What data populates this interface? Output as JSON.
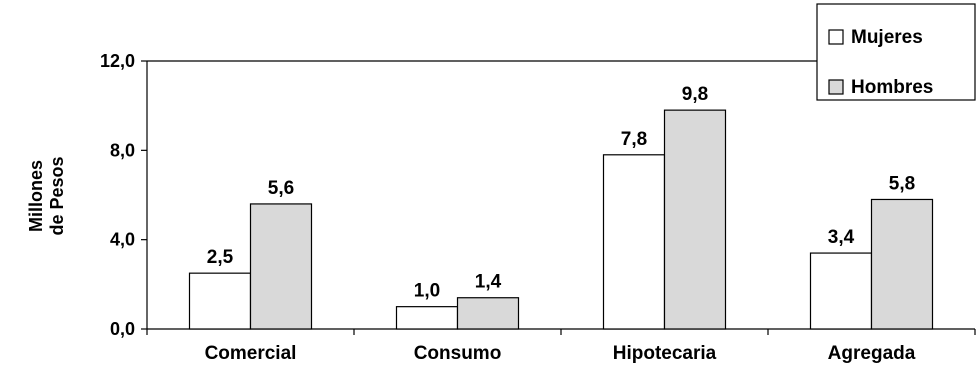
{
  "chart_data": {
    "type": "bar",
    "categories": [
      "Comercial",
      "Consumo",
      "Hipotecaria",
      "Agregada"
    ],
    "series": [
      {
        "name": "Mujeres",
        "values": [
          2.5,
          1.0,
          7.8,
          3.4
        ],
        "labels": [
          "2,5",
          "1,0",
          "7,8",
          "3,4"
        ],
        "color": "#ffffff"
      },
      {
        "name": "Hombres",
        "values": [
          5.6,
          1.4,
          9.8,
          5.8
        ],
        "labels": [
          "5,6",
          "1,4",
          "9,8",
          "5,8"
        ],
        "color": "#d9d9d9"
      }
    ],
    "ylabel_lines": [
      "Millones",
      "de Pesos"
    ],
    "ylim": [
      0,
      12
    ],
    "yticks": [
      0,
      4,
      8,
      12
    ],
    "ytick_labels": [
      "0,0",
      "4,0",
      "8,0",
      "12,0"
    ],
    "grid": false,
    "legend_position": "top-right"
  }
}
